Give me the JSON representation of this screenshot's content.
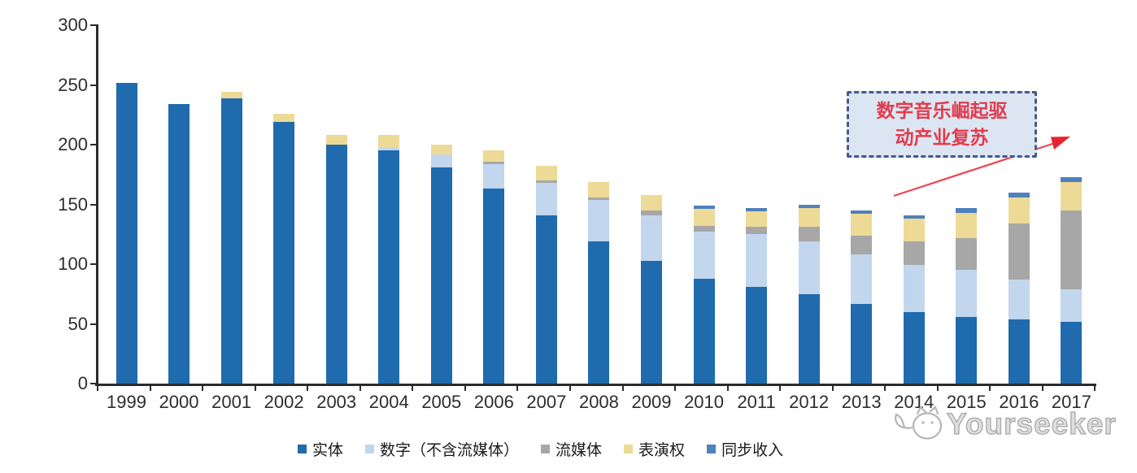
{
  "chart_data": {
    "type": "bar",
    "stacked": true,
    "grid": false,
    "legend_position": "bottom",
    "ylim": [
      0,
      300
    ],
    "yticks": [
      0,
      50,
      100,
      150,
      200,
      250,
      300
    ],
    "categories": [
      "1999",
      "2000",
      "2001",
      "2002",
      "2003",
      "2004",
      "2005",
      "2006",
      "2007",
      "2008",
      "2009",
      "2010",
      "2011",
      "2012",
      "2013",
      "2014",
      "2015",
      "2016",
      "2017"
    ],
    "series": [
      {
        "name": "实体",
        "color": "#1F6BAD",
        "values": [
          252,
          234,
          239,
          219,
          200,
          195,
          181,
          163,
          141,
          119,
          103,
          88,
          81,
          75,
          67,
          60,
          56,
          54,
          52
        ]
      },
      {
        "name": "数字（不含流媒体）",
        "color": "#C2D6EE",
        "values": [
          0,
          0,
          0,
          0,
          0,
          2,
          11,
          21,
          27,
          35,
          38,
          39,
          44,
          44,
          41,
          39,
          39,
          33,
          27
        ]
      },
      {
        "name": "流媒体",
        "color": "#A7A7A7",
        "values": [
          0,
          0,
          0,
          0,
          0,
          0,
          0,
          2,
          2,
          2,
          4,
          5,
          6,
          12,
          16,
          20,
          27,
          47,
          66
        ]
      },
      {
        "name": "表演权",
        "color": "#EDDA96",
        "values": [
          0,
          0,
          5,
          7,
          8,
          11,
          8,
          9,
          12,
          13,
          13,
          14,
          13,
          16,
          18,
          19,
          21,
          22,
          24
        ]
      },
      {
        "name": "同步收入",
        "color": "#4E81BD",
        "values": [
          0,
          0,
          0,
          0,
          0,
          0,
          0,
          0,
          0,
          0,
          0,
          3,
          3,
          3,
          3,
          3,
          4,
          4,
          4
        ]
      }
    ]
  },
  "annotation": {
    "line1": "数字音乐崛起驱",
    "line2": "动产业复苏",
    "text": "数字音乐崛起驱动产业复苏",
    "text_color": "#E23B4C",
    "border_color": "#46598C",
    "fill_color": "#DCE6F3",
    "arrow_color": "#EE4450"
  },
  "watermark": {
    "text": "Yourseeker",
    "icon": "cat-logo-icon",
    "color": "#A8A8A8"
  }
}
